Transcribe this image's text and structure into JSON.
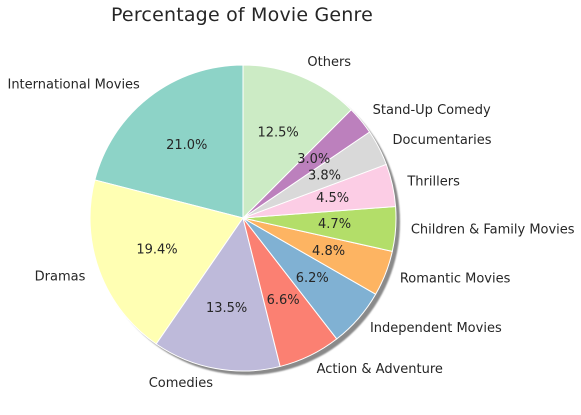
{
  "chart_data": {
    "type": "pie",
    "title": "Percentage of Movie Genre",
    "startangle": 90,
    "direction": "counterclockwise",
    "shadow": true,
    "slices": [
      {
        "label": "International Movies",
        "value": 21.0,
        "pct_text": "21.0%",
        "color": "#8dd3c7"
      },
      {
        "label": "Dramas",
        "value": 19.4,
        "pct_text": "19.4%",
        "color": "#ffffb3"
      },
      {
        "label": "Comedies",
        "value": 13.5,
        "pct_text": "13.5%",
        "color": "#bebada"
      },
      {
        "label": "Action & Adventure",
        "value": 6.6,
        "pct_text": "6.6%",
        "color": "#fb8072"
      },
      {
        "label": "Independent Movies",
        "value": 6.2,
        "pct_text": "6.2%",
        "color": "#80b1d3"
      },
      {
        "label": "Romantic Movies",
        "value": 4.8,
        "pct_text": "4.8%",
        "color": "#fdb462"
      },
      {
        "label": "Children & Family Movies",
        "value": 4.7,
        "pct_text": "4.7%",
        "color": "#b3de69"
      },
      {
        "label": "Thrillers",
        "value": 4.5,
        "pct_text": "4.5%",
        "color": "#fccde5"
      },
      {
        "label": "Documentaries",
        "value": 3.8,
        "pct_text": "3.8%",
        "color": "#d9d9d9"
      },
      {
        "label": "Stand-Up Comedy",
        "value": 3.0,
        "pct_text": "3.0%",
        "color": "#bc80bd"
      },
      {
        "label": "Others",
        "value": 12.5,
        "pct_text": "12.5%",
        "color": "#ccebc5"
      }
    ]
  }
}
